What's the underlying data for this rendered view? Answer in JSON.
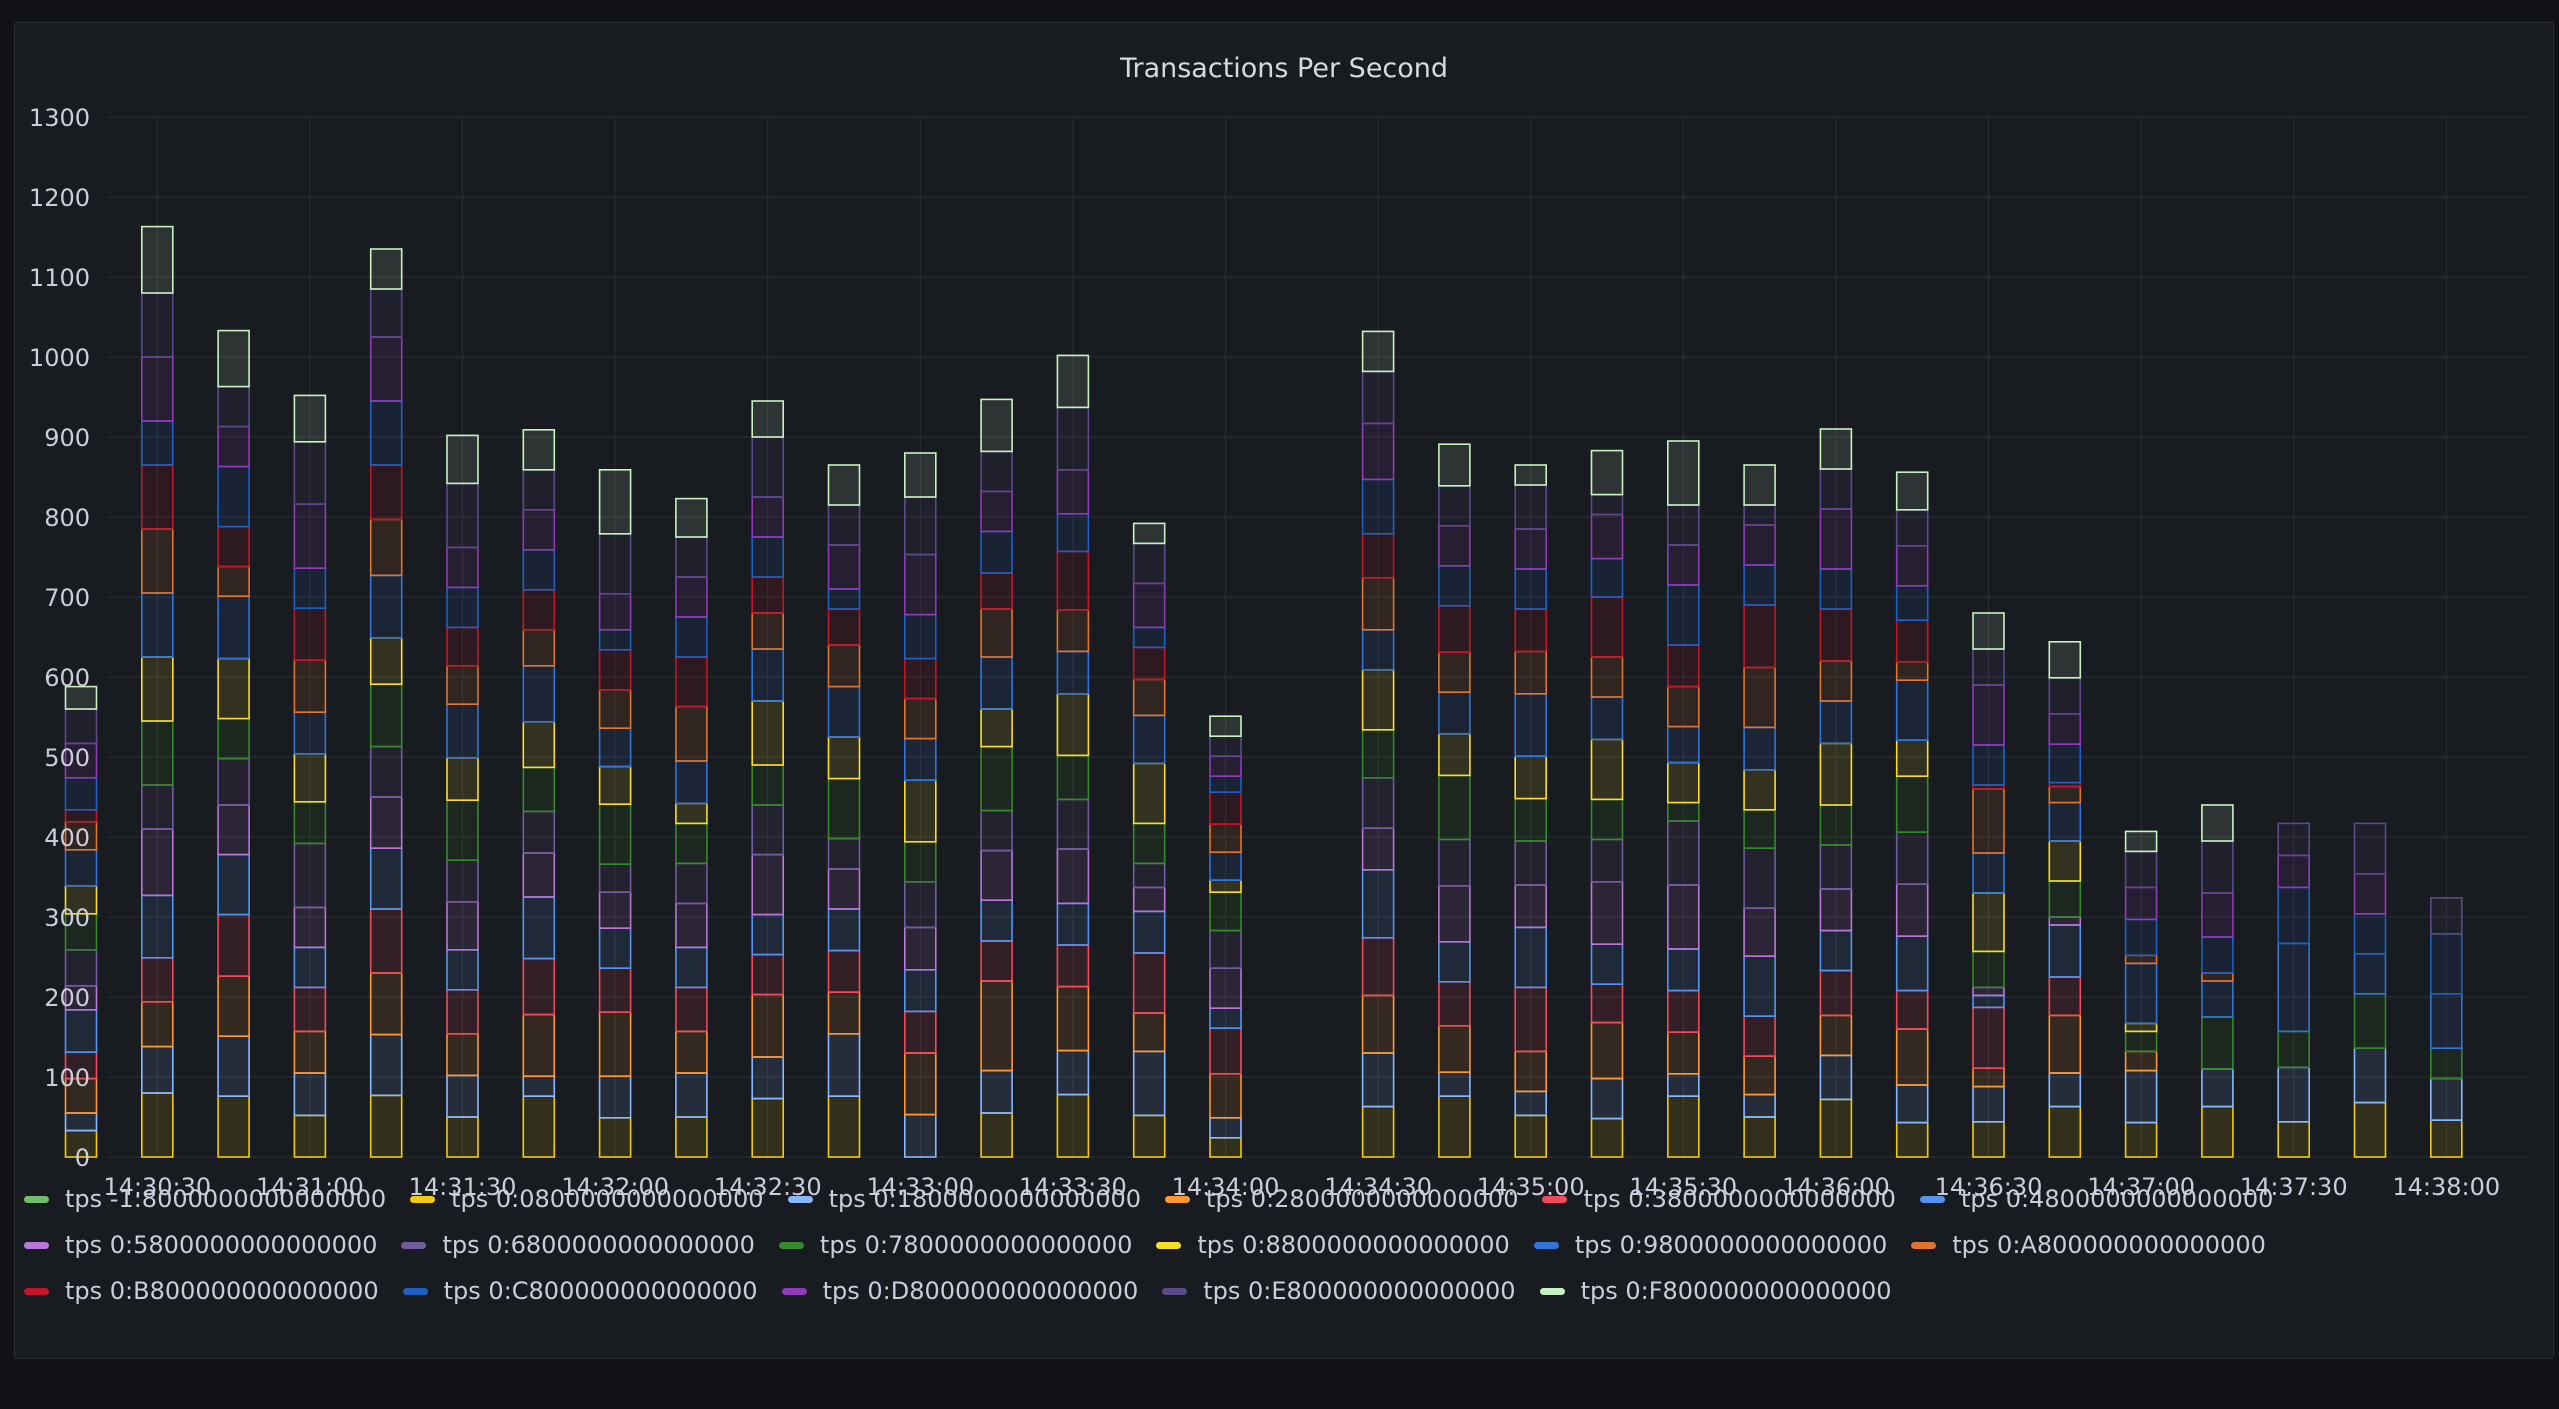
{
  "panel": {
    "title": "Transactions Per Second"
  },
  "chart_data": {
    "type": "bar",
    "stacked": true,
    "title": "Transactions Per Second",
    "ylim": [
      0,
      1300
    ],
    "yticks": [
      0,
      100,
      200,
      300,
      400,
      500,
      600,
      700,
      800,
      900,
      1000,
      1100,
      1200,
      1300
    ],
    "x_tick_labels": [
      "14:30:30",
      "14:31:00",
      "14:31:30",
      "14:32:00",
      "14:32:30",
      "14:33:00",
      "14:33:30",
      "14:34:00",
      "14:34:30",
      "14:35:00",
      "14:35:30",
      "14:36:00",
      "14:36:30",
      "14:37:00",
      "14:37:30",
      "14:38:00"
    ],
    "categories": [
      "14:30:15",
      "14:30:30",
      "14:30:45",
      "14:31:00",
      "14:31:15",
      "14:31:30",
      "14:31:45",
      "14:32:00",
      "14:32:15",
      "14:32:30",
      "14:32:45",
      "14:33:00",
      "14:33:15",
      "14:33:30",
      "14:33:45",
      "14:34:00",
      "14:34:15",
      "14:34:30",
      "14:34:45",
      "14:35:00",
      "14:35:15",
      "14:35:30",
      "14:35:45",
      "14:36:00",
      "14:36:15",
      "14:36:30",
      "14:36:45",
      "14:37:00",
      "14:37:15",
      "14:37:30",
      "14:37:45",
      "14:38:00"
    ],
    "series": [
      {
        "name": "tps -1:8000000000000000",
        "color": "#73bf69",
        "values": [
          0,
          0,
          0,
          0,
          0,
          0,
          0,
          0,
          0,
          0,
          0,
          0,
          0,
          0,
          0,
          0,
          null,
          0,
          0,
          0,
          0,
          0,
          0,
          0,
          0,
          0,
          0,
          0,
          0,
          0,
          0,
          0
        ]
      },
      {
        "name": "tps 0:0800000000000000",
        "color": "#f2cc0c",
        "values": [
          33,
          80,
          76,
          52,
          77,
          50,
          76,
          49,
          50,
          73,
          76,
          0,
          55,
          78,
          52,
          24,
          null,
          63,
          76,
          52,
          48,
          76,
          50,
          72,
          43,
          44,
          63,
          43,
          63,
          44,
          68,
          46
        ]
      },
      {
        "name": "tps 0:1800000000000000",
        "color": "#8ab8ff",
        "values": [
          22,
          58,
          75,
          53,
          76,
          52,
          25,
          52,
          55,
          52,
          78,
          53,
          53,
          55,
          80,
          25,
          null,
          67,
          30,
          30,
          50,
          28,
          28,
          55,
          47,
          44,
          42,
          65,
          47,
          68,
          68,
          52
        ]
      },
      {
        "name": "tps 0:2800000000000000",
        "color": "#ff9830",
        "values": [
          43,
          56,
          75,
          52,
          77,
          52,
          77,
          80,
          52,
          78,
          52,
          77,
          112,
          80,
          48,
          55,
          null,
          72,
          58,
          50,
          70,
          52,
          48,
          50,
          70,
          23,
          72,
          24,
          0,
          0,
          0,
          0
        ]
      },
      {
        "name": "tps 0:3800000000000000",
        "color": "#f2495c",
        "values": [
          33,
          55,
          77,
          55,
          80,
          55,
          70,
          55,
          55,
          50,
          52,
          52,
          50,
          52,
          75,
          57,
          null,
          72,
          55,
          80,
          48,
          52,
          50,
          56,
          48,
          76,
          48,
          0,
          0,
          0,
          0,
          0
        ]
      },
      {
        "name": "tps 0:4800000000000000",
        "color": "#5794f2",
        "values": [
          53,
          78,
          75,
          50,
          76,
          50,
          77,
          50,
          50,
          50,
          52,
          52,
          51,
          52,
          52,
          25,
          null,
          85,
          50,
          75,
          50,
          52,
          75,
          50,
          68,
          15,
          65,
          0,
          0,
          0,
          0,
          0
        ]
      },
      {
        "name": "tps 0:5800000000000000",
        "color": "#b877d9",
        "values": [
          30,
          83,
          62,
          50,
          64,
          60,
          55,
          45,
          55,
          75,
          50,
          53,
          62,
          68,
          30,
          50,
          null,
          52,
          70,
          53,
          78,
          80,
          60,
          52,
          65,
          10,
          10,
          0,
          0,
          0,
          0,
          0
        ]
      },
      {
        "name": "tps 0:6800000000000000",
        "color": "#705da0",
        "values": [
          45,
          55,
          58,
          80,
          63,
          52,
          52,
          35,
          50,
          62,
          38,
          57,
          50,
          62,
          30,
          47,
          null,
          63,
          58,
          55,
          53,
          80,
          75,
          55,
          65,
          0,
          0,
          0,
          0,
          0,
          0,
          0
        ]
      },
      {
        "name": "tps 0:7800000000000000",
        "color": "#37872d",
        "values": [
          45,
          80,
          50,
          52,
          78,
          75,
          55,
          75,
          50,
          50,
          75,
          50,
          80,
          55,
          50,
          48,
          null,
          60,
          80,
          53,
          50,
          23,
          48,
          50,
          70,
          45,
          45,
          25,
          65,
          45,
          68,
          38
        ]
      },
      {
        "name": "tps 0:8800000000000000",
        "color": "#fade2a",
        "values": [
          35,
          80,
          75,
          60,
          58,
          53,
          57,
          47,
          25,
          80,
          52,
          77,
          47,
          77,
          75,
          15,
          null,
          75,
          52,
          53,
          75,
          50,
          50,
          77,
          45,
          73,
          50,
          10,
          0,
          0,
          0,
          0
        ]
      },
      {
        "name": "tps 0:9800000000000000",
        "color": "#3274d9",
        "values": [
          45,
          80,
          78,
          52,
          78,
          67,
          70,
          48,
          53,
          65,
          63,
          52,
          65,
          53,
          60,
          35,
          null,
          50,
          52,
          78,
          53,
          45,
          53,
          53,
          75,
          50,
          48,
          75,
          45,
          110,
          50,
          68
        ]
      },
      {
        "name": "tps 0:A800000000000000",
        "color": "#e0752d",
        "values": [
          35,
          80,
          37,
          65,
          70,
          48,
          45,
          48,
          68,
          45,
          52,
          50,
          60,
          52,
          45,
          35,
          null,
          65,
          50,
          53,
          50,
          50,
          75,
          50,
          23,
          80,
          20,
          10,
          10,
          0,
          0,
          0
        ]
      },
      {
        "name": "tps 0:B800000000000000",
        "color": "#c4162a",
        "values": [
          15,
          80,
          50,
          65,
          68,
          48,
          50,
          50,
          62,
          45,
          45,
          50,
          45,
          73,
          40,
          40,
          null,
          55,
          58,
          53,
          75,
          52,
          78,
          65,
          52,
          5,
          5,
          0,
          0,
          0,
          0,
          0
        ]
      },
      {
        "name": "tps 0:C800000000000000",
        "color": "#1f60c4",
        "values": [
          40,
          55,
          75,
          50,
          80,
          50,
          50,
          25,
          50,
          50,
          25,
          55,
          52,
          47,
          25,
          20,
          null,
          68,
          50,
          50,
          48,
          75,
          50,
          50,
          43,
          50,
          48,
          45,
          45,
          70,
          50,
          75
        ]
      },
      {
        "name": "tps 0:D800000000000000",
        "color": "#8f3bb8",
        "values": [
          43,
          80,
          50,
          80,
          80,
          50,
          50,
          45,
          50,
          50,
          55,
          75,
          50,
          55,
          55,
          25,
          null,
          70,
          50,
          50,
          55,
          50,
          50,
          75,
          50,
          75,
          38,
          40,
          55,
          40,
          50,
          0
        ]
      },
      {
        "name": "tps 0:E800000000000000",
        "color": "#5a4a8a",
        "values": [
          43,
          80,
          50,
          78,
          60,
          80,
          50,
          75,
          50,
          75,
          50,
          72,
          50,
          78,
          50,
          25,
          null,
          65,
          50,
          55,
          25,
          50,
          25,
          50,
          45,
          45,
          45,
          45,
          65,
          40,
          63,
          45
        ]
      },
      {
        "name": "tps 0:F800000000000000",
        "color": "#c8f2c2",
        "values": [
          28,
          83,
          70,
          58,
          50,
          60,
          50,
          80,
          48,
          45,
          50,
          55,
          65,
          65,
          25,
          25,
          null,
          50,
          52,
          25,
          55,
          80,
          50,
          50,
          47,
          45,
          45,
          25,
          45,
          0,
          0,
          0
        ]
      }
    ]
  }
}
